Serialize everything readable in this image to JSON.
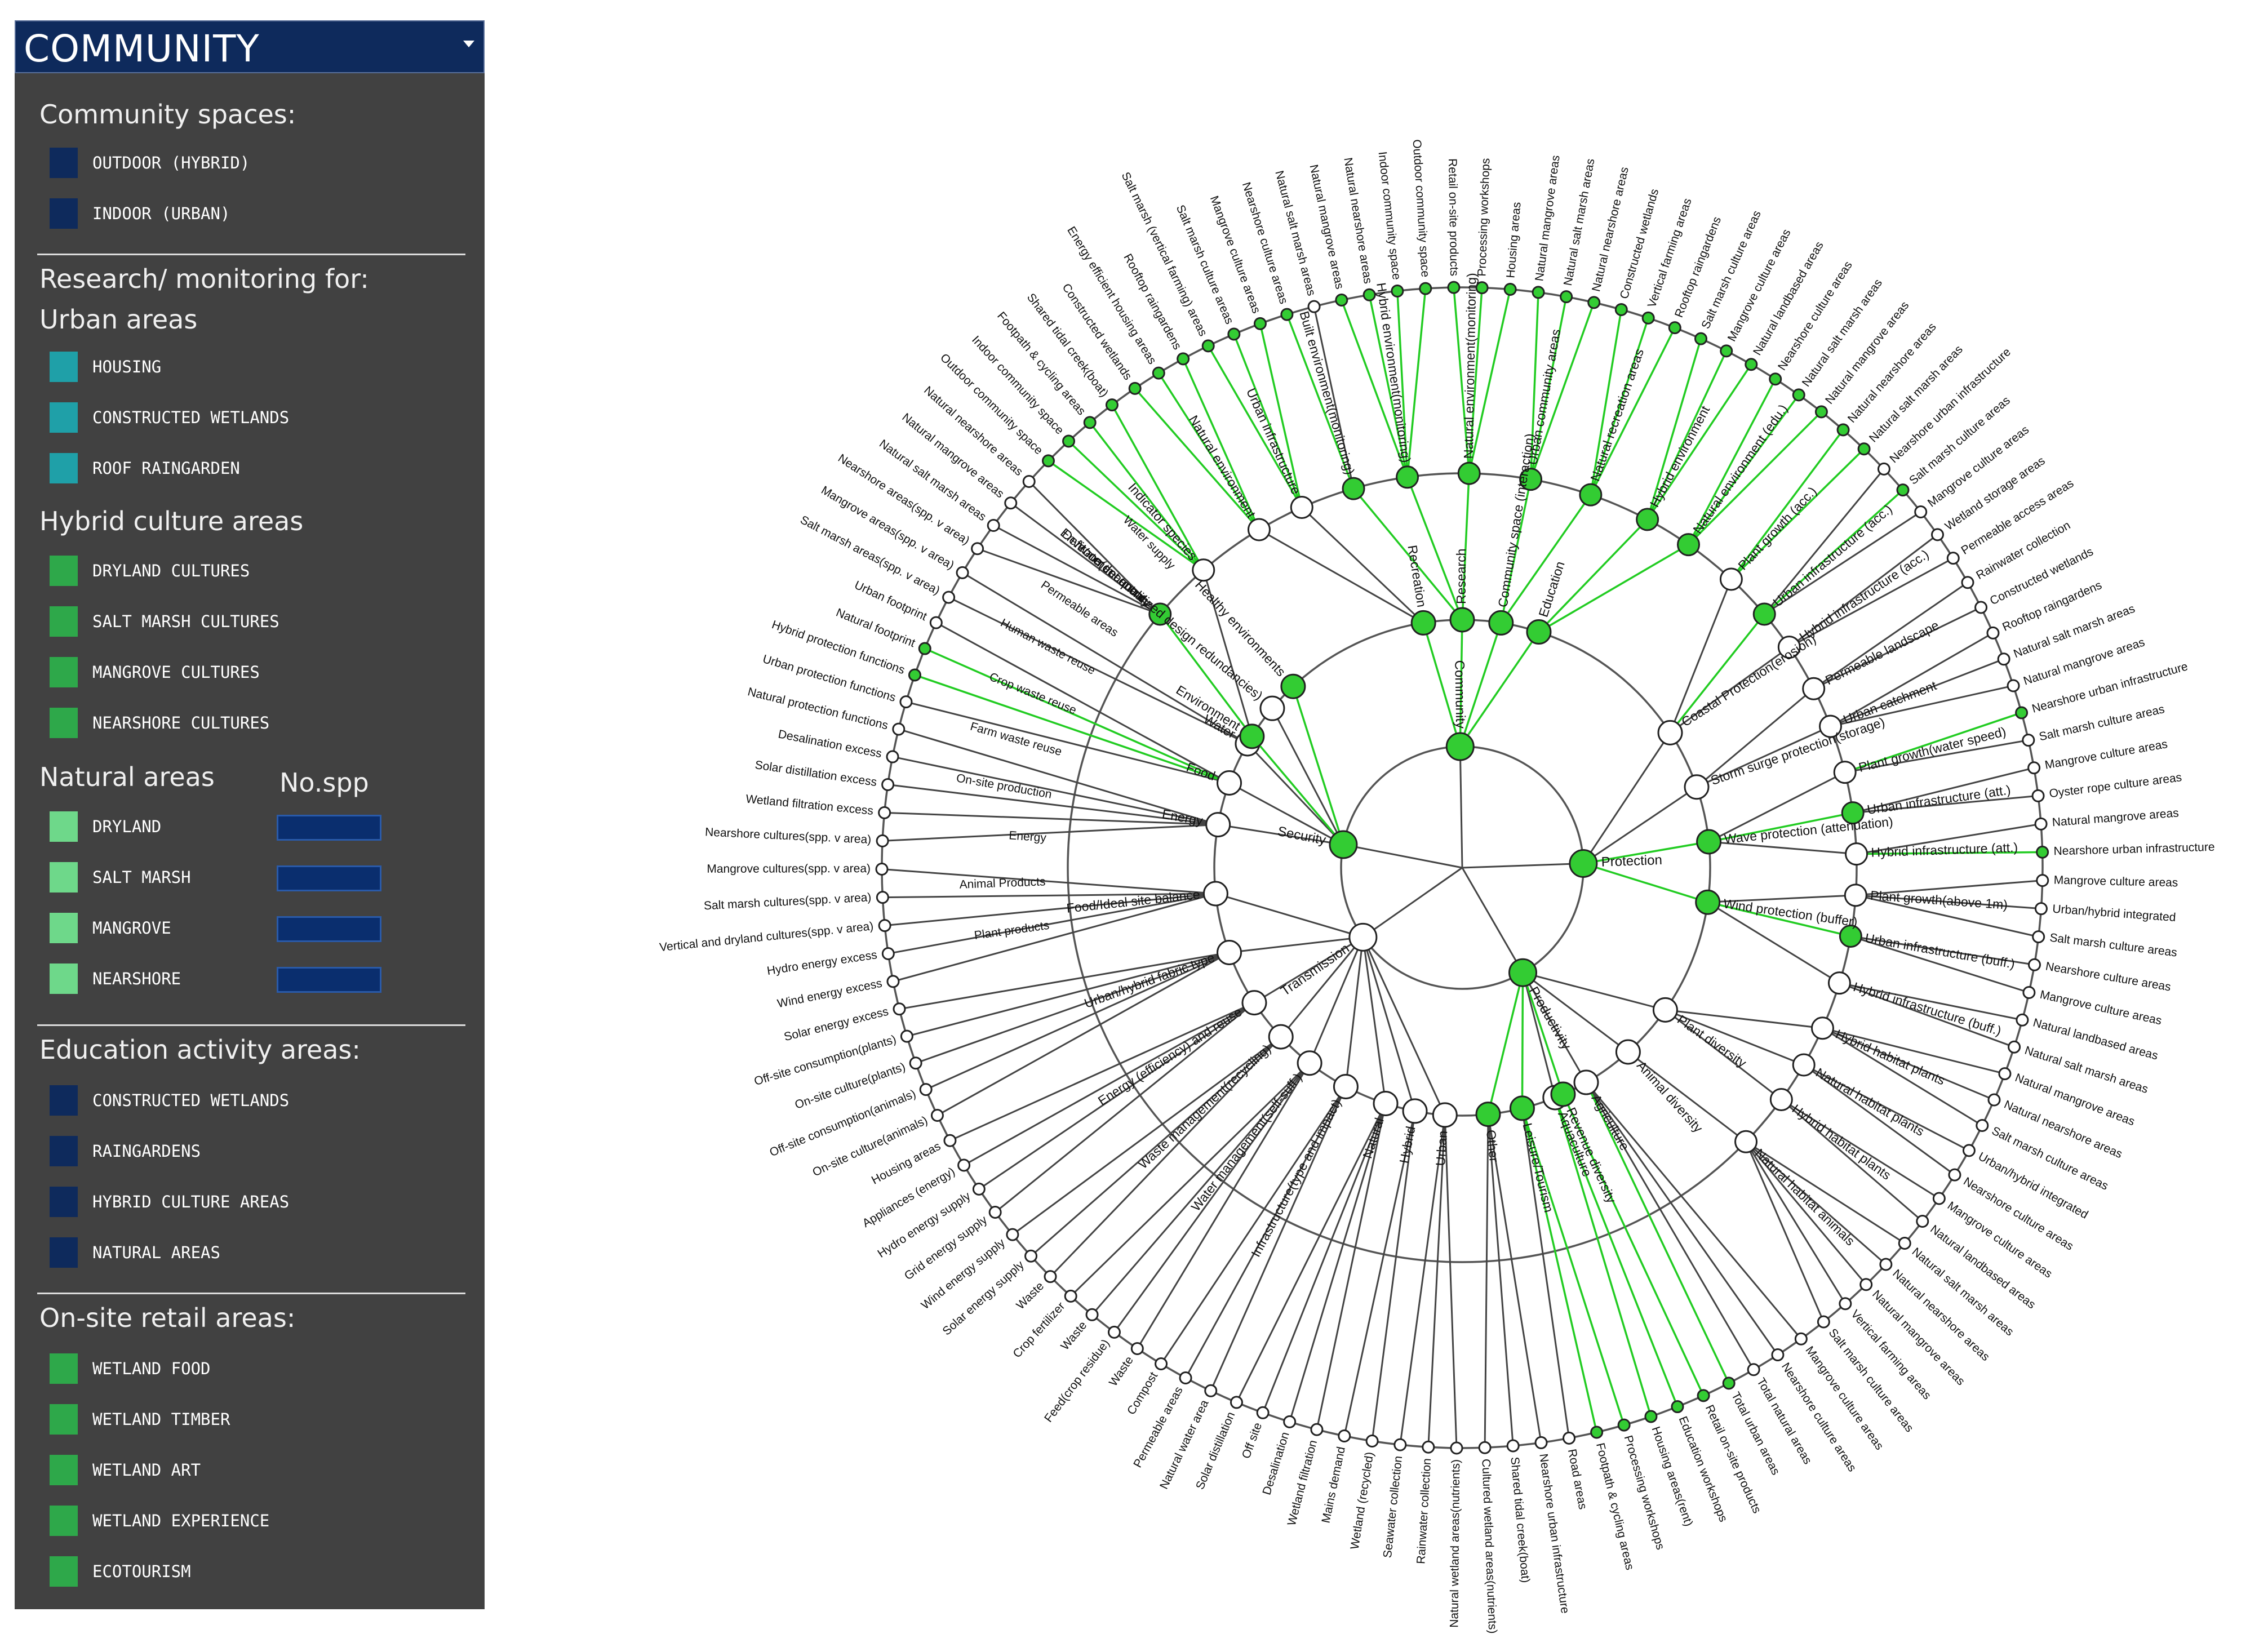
{
  "panel": {
    "title": "COMMUNITY",
    "sections": [
      {
        "title": "Community spaces:",
        "items": [
          {
            "label": "OUTDOOR (HYBRID)",
            "color": "#0e2a5c"
          },
          {
            "label": "INDOOR (URBAN)",
            "color": "#0e2a5c"
          }
        ]
      },
      {
        "title": "Research/ monitoring for:",
        "subtitle": "Urban areas",
        "items": [
          {
            "label": "HOUSING",
            "color": "#1fa0a8"
          },
          {
            "label": "CONSTRUCTED WETLANDS",
            "color": "#1fa0a8"
          },
          {
            "label": "ROOF RAINGARDEN",
            "color": "#1fa0a8"
          }
        ]
      },
      {
        "title": "Hybrid culture areas",
        "items": [
          {
            "label": "DRYLAND CULTURES",
            "color": "#2ea84a"
          },
          {
            "label": "SALT MARSH CULTURES",
            "color": "#2ea84a"
          },
          {
            "label": "MANGROVE CULTURES",
            "color": "#2ea84a"
          },
          {
            "label": "NEARSHORE CULTURES",
            "color": "#2ea84a"
          }
        ]
      },
      {
        "title": "Natural areas",
        "spp_header": "No.spp",
        "items": [
          {
            "label": "DRYLAND",
            "color": "#6ed88a"
          },
          {
            "label": "SALT MARSH",
            "color": "#6ed88a"
          },
          {
            "label": "MANGROVE",
            "color": "#6ed88a"
          },
          {
            "label": "NEARSHORE",
            "color": "#6ed88a"
          }
        ]
      },
      {
        "title": "Education activity areas:",
        "items": [
          {
            "label": "CONSTRUCTED WETLANDS",
            "color": "#0e2a5c"
          },
          {
            "label": "RAINGARDENS",
            "color": "#0e2a5c"
          },
          {
            "label": "HYBRID CULTURE AREAS",
            "color": "#0e2a5c"
          },
          {
            "label": "NATURAL AREAS",
            "color": "#0e2a5c"
          }
        ]
      },
      {
        "title": "On-site retail areas:",
        "items": [
          {
            "label": "WETLAND FOOD",
            "color": "#2ea84a"
          },
          {
            "label": "WETLAND TIMBER",
            "color": "#2ea84a"
          },
          {
            "label": "WETLAND ART",
            "color": "#2ea84a"
          },
          {
            "label": "WETLAND EXPERIENCE",
            "color": "#2ea84a"
          },
          {
            "label": "ECOTOURISM",
            "color": "#2ea84a"
          }
        ]
      }
    ]
  },
  "diagram": {
    "colors": {
      "highlight": "#22cc22",
      "node_highlight": "#33cc33",
      "link": "#444444",
      "node": "#ffffff"
    },
    "level1": [
      {
        "label": "Community",
        "hl": true,
        "angle": 91
      },
      {
        "label": "Protection",
        "hl": true,
        "angle": 2
      },
      {
        "label": "Productivity",
        "hl": true,
        "angle": -60
      },
      {
        "label": "Transmission",
        "hl": false,
        "angle": -145
      },
      {
        "label": "Security",
        "hl": true,
        "angle": 169
      }
    ],
    "level2": [
      {
        "label": "Education",
        "hl": true,
        "p": 0,
        "angle": 72
      },
      {
        "label": "Community space (interaction)",
        "hl": true,
        "p": 0,
        "angle": 81
      },
      {
        "label": "Research",
        "hl": true,
        "p": 0,
        "angle": 90
      },
      {
        "label": "Recreation",
        "hl": true,
        "p": 0,
        "angle": 99
      },
      {
        "label": "Coastal Protection(erosion)",
        "hl": false,
        "p": 1,
        "angle": 33
      },
      {
        "label": "Storm surge protection(storage)",
        "hl": false,
        "p": 1,
        "angle": 19
      },
      {
        "label": "Wave protection (attenuation)",
        "hl": true,
        "p": 1,
        "angle": 6
      },
      {
        "label": "Wind protection (buffer)",
        "hl": true,
        "p": 1,
        "angle": -8
      },
      {
        "label": "Plant diversity",
        "hl": false,
        "p": 2,
        "angle": -35
      },
      {
        "label": "Animal diversity",
        "hl": false,
        "p": 2,
        "angle": -48
      },
      {
        "label": "Agriculture",
        "hl": false,
        "p": 2,
        "angle": -60
      },
      {
        "label": "Aquaculture",
        "hl": false,
        "p": 2,
        "angle": -68
      },
      {
        "label": "Leisure/Tourism",
        "hl": true,
        "p": 2,
        "angle": -76
      },
      {
        "label": "Other",
        "hl": true,
        "p": 2,
        "angle": -84
      },
      {
        "label": "Revenue diversity",
        "hl": true,
        "p": 2,
        "angle": -66
      },
      {
        "label": "Urban",
        "hl": false,
        "p": 3,
        "angle": -94
      },
      {
        "label": "Hybrid",
        "hl": false,
        "p": 3,
        "angle": -101
      },
      {
        "label": "Natural",
        "hl": false,
        "p": 3,
        "angle": -108
      },
      {
        "label": "Infrastructure(type and impact)",
        "hl": false,
        "p": 3,
        "angle": -118
      },
      {
        "label": "Water management(self-suff.)",
        "hl": false,
        "p": 3,
        "angle": -128
      },
      {
        "label": "Waste management(recycling)",
        "hl": false,
        "p": 3,
        "angle": -137
      },
      {
        "label": "Energy (efficiency) and reuse",
        "hl": false,
        "p": 3,
        "angle": -147
      },
      {
        "label": "Urban/hybrid fabric type",
        "hl": false,
        "p": 3,
        "angle": -160
      },
      {
        "label": "Food/Ideal site balance",
        "hl": false,
        "p": 3,
        "angle": -174
      },
      {
        "label": "Energy",
        "hl": false,
        "p": 4,
        "angle": 170
      },
      {
        "label": "Food",
        "hl": false,
        "p": 4,
        "angle": 160
      },
      {
        "label": "Water",
        "hl": false,
        "p": 4,
        "angle": 150
      },
      {
        "label": "Defence(decentralized design redundancies)",
        "hl": false,
        "p": 4,
        "angle": 140
      },
      {
        "label": "Environment",
        "hl": true,
        "p": 4,
        "angle": 148
      },
      {
        "label": "Healthy environments",
        "hl": true,
        "p": 4,
        "angle": 133
      }
    ],
    "level3": [
      {
        "label": "Plant growth (acc.)",
        "hl": false,
        "p": 4,
        "angle": 47
      },
      {
        "label": "Urban infrastructure (acc.)",
        "hl": true,
        "p": 4,
        "angle": 40
      },
      {
        "label": "Hybrid infrastructure (acc.)",
        "hl": false,
        "p": 4,
        "angle": 34
      },
      {
        "label": "Permeable landscape",
        "hl": false,
        "p": 5,
        "angle": 27
      },
      {
        "label": "Urban catchment",
        "hl": false,
        "p": 5,
        "angle": 21
      },
      {
        "label": "Plant growth(water speed)",
        "hl": false,
        "p": 6,
        "angle": 14
      },
      {
        "label": "Urban infrastructure (att.)",
        "hl": true,
        "p": 6,
        "angle": 8
      },
      {
        "label": "Hybrid infrastructure (att.)",
        "hl": false,
        "p": 6,
        "angle": 2
      },
      {
        "label": "Plant growth(above 1m)",
        "hl": false,
        "p": 7,
        "angle": -4
      },
      {
        "label": "Urban infrastructure (buff.)",
        "hl": true,
        "p": 7,
        "angle": -10
      },
      {
        "label": "Hybrid infrastructure (buff.)",
        "hl": false,
        "p": 7,
        "angle": -17
      },
      {
        "label": "Hybrid habitat plants",
        "hl": false,
        "p": 8,
        "angle": -24
      },
      {
        "label": "Natural habitat plants",
        "hl": false,
        "p": 8,
        "angle": -30
      },
      {
        "label": "Hybrid habitat plants",
        "hl": false,
        "p": 8,
        "angle": -36
      },
      {
        "label": "Natural habitat animals",
        "hl": false,
        "p": 9,
        "angle": -44
      },
      {
        "label": "Natural environment (edu.)",
        "hl": true,
        "p": 0,
        "angle": 55
      },
      {
        "label": "Hybrid environment",
        "hl": true,
        "p": 0,
        "angle": 62
      },
      {
        "label": "Natural recreation areas",
        "hl": true,
        "p": 1,
        "angle": 71
      },
      {
        "label": "Urban community areas",
        "hl": true,
        "p": 1,
        "angle": 80
      },
      {
        "label": "Natural environment(monitoring)",
        "hl": true,
        "p": 2,
        "angle": 89
      },
      {
        "label": "Hybrid environment(monitoring)",
        "hl": true,
        "p": 2,
        "angle": 98
      },
      {
        "label": "Built environment(monitoring)",
        "hl": true,
        "p": 2,
        "angle": 106
      },
      {
        "label": "Urban infrastructure",
        "hl": false,
        "p": 3,
        "angle": 114
      },
      {
        "label": "Natural environment",
        "hl": false,
        "p": 3,
        "angle": 121
      },
      {
        "label": "Indicator species",
        "hl": false,
        "p": 28,
        "angle": 131
      },
      {
        "label": "Environment quality",
        "hl": true,
        "p": 28,
        "angle": 140
      }
    ],
    "outer": [
      "Natural mangrove areas",
      "Natural nearshore areas",
      "Indoor community space",
      "Outdoor community space",
      "Retail on-site products",
      "Processing workshops",
      "Housing areas",
      "Natural mangrove areas",
      "Natural salt marsh areas",
      "Natural nearshore areas",
      "Constructed wetlands",
      "Vertical farming areas",
      "Rooftop raingardens",
      "Salt marsh culture areas",
      "Mangrove culture areas",
      "Natural landbased areas",
      "Nearshore culture areas",
      "Natural salt marsh areas",
      "Natural mangrove areas",
      "Natural nearshore areas",
      "Natural salt marsh areas",
      "Nearshore urban infrastructure",
      "Salt marsh culture areas",
      "Mangrove culture areas",
      "Wetland storage areas",
      "Permeable access areas",
      "Rainwater collection",
      "Constructed wetlands",
      "Rooftop raingardens",
      "Natural salt marsh areas",
      "Natural mangrove areas",
      "Nearshore urban infrastructure",
      "Salt marsh culture areas",
      "Mangrove culture areas",
      "Oyster rope culture areas",
      "Natural mangrove areas",
      "Nearshore urban infrastructure",
      "Mangrove culture areas",
      "Urban/hybrid integrated",
      "Salt marsh culture areas",
      "Nearshore culture areas",
      "Mangrove culture areas",
      "Natural landbased areas",
      "Natural salt marsh areas",
      "Natural mangrove areas",
      "Natural nearshore areas",
      "Salt marsh culture areas",
      "Urban/hybrid integrated",
      "Nearshore culture areas",
      "Mangrove culture areas",
      "Natural landbased areas",
      "Natural salt marsh areas",
      "Natural nearshore areas",
      "Natural mangrove areas",
      "Vertical farming areas",
      "Salt marsh culture areas",
      "Mangrove culture areas",
      "Nearshore culture areas",
      "Total natural areas",
      "Total urban areas",
      "Retail on-site products",
      "Education workshops",
      "Housing areas(rent)",
      "Processing workshops",
      "Footpath & cycling areas",
      "Road areas",
      "Nearshore urban infrastructure",
      "Shared tidal creek(boat)",
      "Cultured wetland areas(nutrients)",
      "Natural wetland areas(nutrients)",
      "Rainwater collection",
      "Seawater collection",
      "Wetland (recycled)",
      "Mains demand",
      "Wetland filtration",
      "Desalination",
      "Off site",
      "Solar distillation",
      "Natural water area",
      "Permeable areas",
      "Compost",
      "Waste",
      "Feed(crop residue)",
      "Waste",
      "Crop fertilizer",
      "Waste",
      "Solar energy supply",
      "Wind energy supply",
      "Grid energy supply",
      "Hydro energy supply",
      "Appliances (energy)",
      "Housing areas",
      "On-site culture(animals)",
      "Off-site consumption(animals)",
      "On-site culture(plants)",
      "Off-site consumption(plants)",
      "Solar energy excess",
      "Wind energy excess",
      "Hydro energy excess",
      "Vertical and dryland cultures(spp. v area)",
      "Salt marsh cultures(spp. v area)",
      "Mangrove cultures(spp. v area)",
      "Nearshore cultures(spp. v area)",
      "Wetland filtration excess",
      "Solar distillation excess",
      "Desalination excess",
      "Natural protection functions",
      "Urban protection functions",
      "Hybrid protection functions",
      "Natural footprint",
      "Urban footprint",
      "Salt marsh areas(spp. v area)",
      "Mangrove areas(spp. v area)",
      "Nearshore areas(spp. v area)",
      "Natural salt marsh areas",
      "Natural mangrove areas",
      "Natural nearshore areas",
      "Outdoor community space",
      "Indoor community space",
      "Footpath & cycling areas",
      "Shared tidal creek(boat)",
      "Constructed wetlands",
      "Energy efficient housing areas",
      "Rooftop raingardens",
      "Salt marsh (vertical farming) areas",
      "Salt marsh culture areas",
      "Mangrove culture areas",
      "Nearshore culture areas",
      "Natural salt marsh areas"
    ],
    "outer_hl": [
      0,
      1,
      2,
      3,
      4,
      5,
      6,
      7,
      8,
      9,
      10,
      11,
      12,
      13,
      14,
      15,
      16,
      17,
      18,
      19,
      20,
      22,
      31,
      36,
      59,
      60,
      61,
      62,
      63,
      64,
      108,
      109,
      117,
      118,
      119,
      120,
      121,
      122,
      123,
      124,
      125,
      126,
      127
    ],
    "extra_labels": {
      "inner_labels": [
        "Plant products",
        "Animal Products",
        "Energy",
        "On-site production",
        "Farm waste reuse",
        "Crop waste reuse",
        "Human waste reuse",
        "Permeable areas",
        "Water treatment",
        "Water supply"
      ]
    }
  }
}
